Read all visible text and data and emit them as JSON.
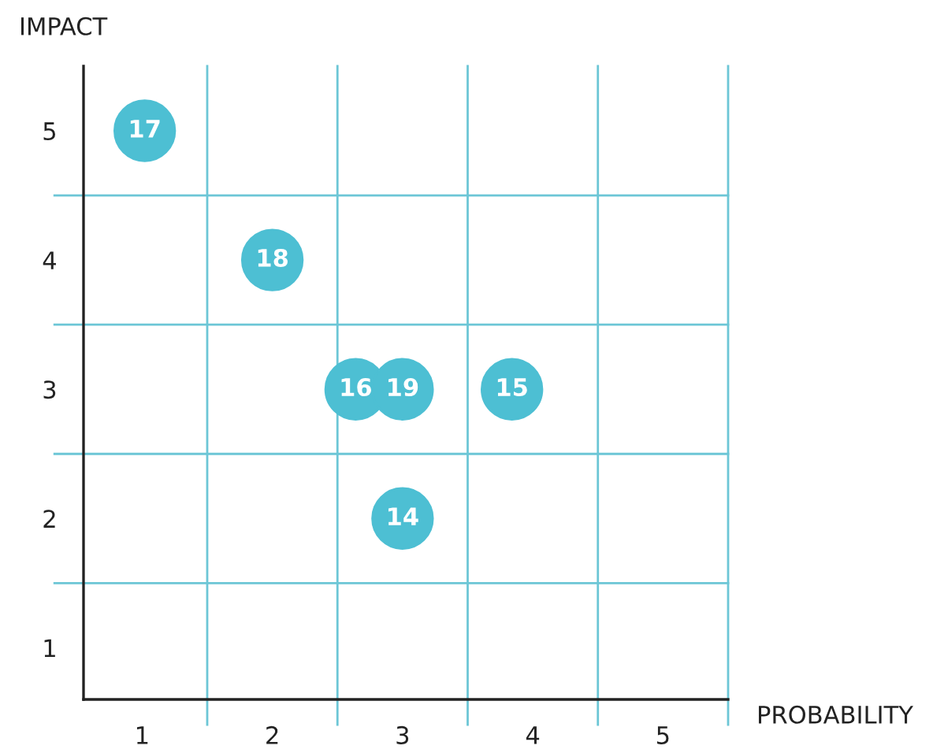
{
  "chart_data": {
    "type": "scatter",
    "xlabel": "PROBABILITY",
    "ylabel": "IMPACT",
    "x": [
      1.02,
      2.0,
      2.64,
      3.0,
      3.84,
      3.0
    ],
    "series": [
      {
        "color": "#4dbfd3",
        "values": [
          5,
          4,
          3,
          3,
          3,
          2
        ]
      }
    ],
    "annotations": [
      {
        "text": "17",
        "x": 1.02,
        "y": 5
      },
      {
        "text": "18",
        "x": 2.0,
        "y": 4
      },
      {
        "text": "16",
        "x": 2.64,
        "y": 3
      },
      {
        "text": "19",
        "x": 3.0,
        "y": 3
      },
      {
        "text": "15",
        "x": 3.84,
        "y": 3
      },
      {
        "text": "14",
        "x": 3.0,
        "y": 2
      }
    ],
    "xlim": [
      0.55,
      5.5
    ],
    "ylim": [
      0.6,
      5.5
    ],
    "xticks": [
      1,
      2,
      3,
      4,
      5
    ],
    "yticks": [
      1,
      2,
      3,
      4,
      5
    ],
    "ref_lines": [
      {
        "axis": "x",
        "value": 1.5,
        "color": "#6cc6d6"
      },
      {
        "axis": "x",
        "value": 2.5,
        "color": "#6cc6d6"
      },
      {
        "axis": "x",
        "value": 3.5,
        "color": "#6cc6d6"
      },
      {
        "axis": "x",
        "value": 4.5,
        "color": "#6cc6d6"
      },
      {
        "axis": "x",
        "value": 5.5,
        "color": "#6cc6d6"
      },
      {
        "axis": "y",
        "value": 1.5,
        "color": "#6cc6d6"
      },
      {
        "axis": "y",
        "value": 2.5,
        "color": "#6cc6d6"
      },
      {
        "axis": "y",
        "value": 3.5,
        "color": "#6cc6d6"
      },
      {
        "axis": "y",
        "value": 4.5,
        "color": "#6cc6d6"
      }
    ],
    "marker": "circle",
    "grid": false,
    "legend": false
  }
}
